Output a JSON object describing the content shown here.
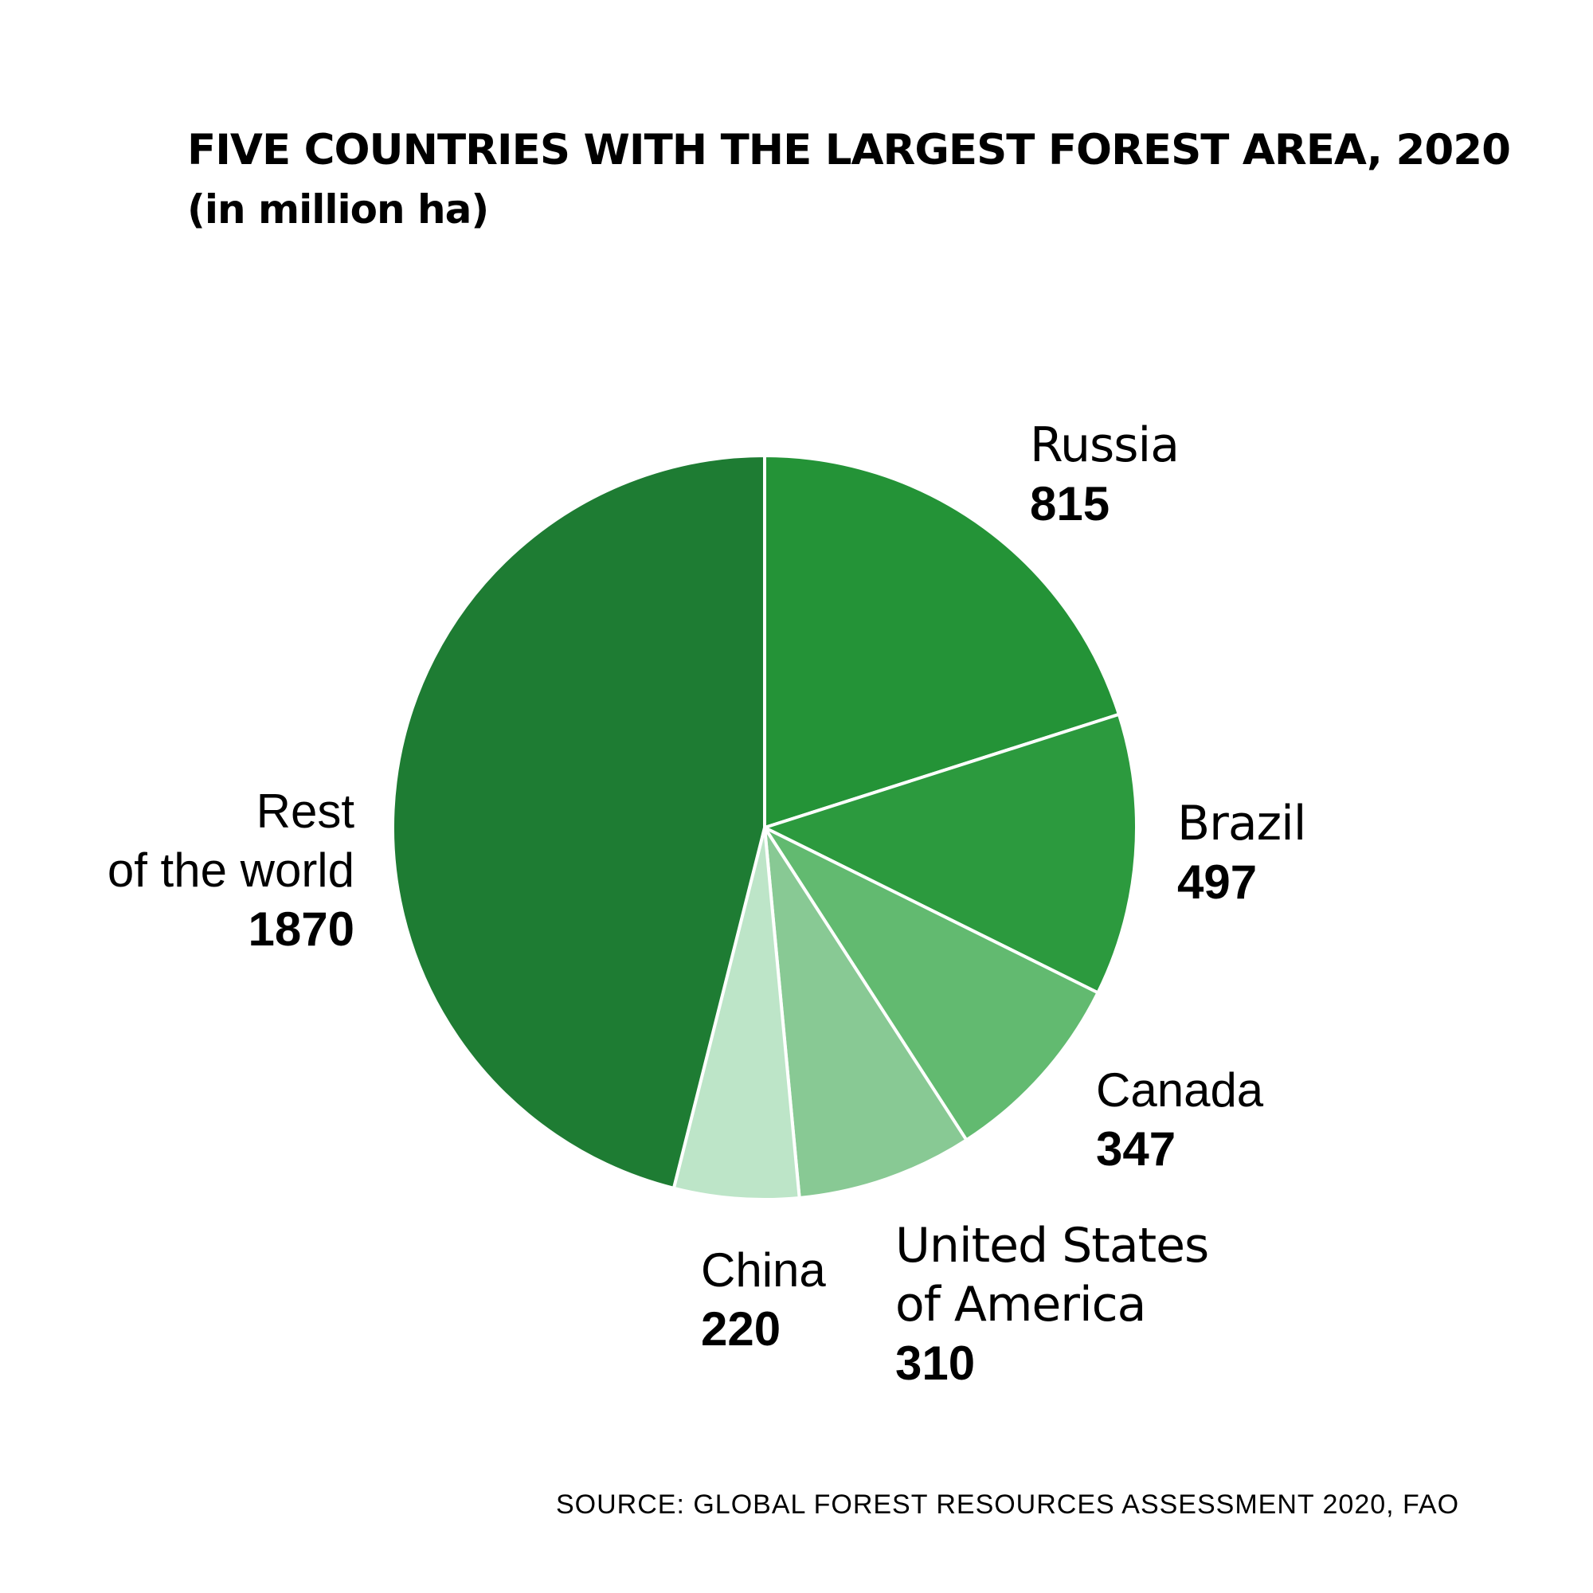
{
  "header": {
    "title": "FIVE COUNTRIES WITH THE LARGEST FOREST AREA, 2020",
    "subtitle": "(in million ha)"
  },
  "source": "SOURCE: GLOBAL FOREST RESOURCES ASSESSMENT 2020, FAO",
  "labels": {
    "russia": {
      "name": "Russia",
      "value": "815"
    },
    "brazil": {
      "name": "Brazil",
      "value": "497"
    },
    "canada": {
      "name": "Canada",
      "value": "347"
    },
    "usa": {
      "line1": "United States",
      "line2": "of America",
      "value": "310"
    },
    "china": {
      "name": "China",
      "value": "220"
    },
    "rest": {
      "line1": "Rest",
      "line2": "of the world",
      "value": "1870"
    }
  },
  "chart_data": {
    "type": "pie",
    "title": "FIVE COUNTRIES WITH THE LARGEST FOREST AREA, 2020",
    "subtitle": "(in million ha)",
    "unit": "million ha",
    "slices": [
      {
        "label": "Russia",
        "value": 815,
        "color": "#249337"
      },
      {
        "label": "Brazil",
        "value": 497,
        "color": "#2c9a3e"
      },
      {
        "label": "Canada",
        "value": 347,
        "color": "#62ba70"
      },
      {
        "label": "United States of America",
        "value": 310,
        "color": "#88c994"
      },
      {
        "label": "China",
        "value": 220,
        "color": "#bde5c8"
      },
      {
        "label": "Rest of the world",
        "value": 1870,
        "color": "#1e7c33"
      }
    ],
    "start_angle_deg": 0,
    "direction": "clockwise",
    "separator_color": "#ffffff"
  }
}
